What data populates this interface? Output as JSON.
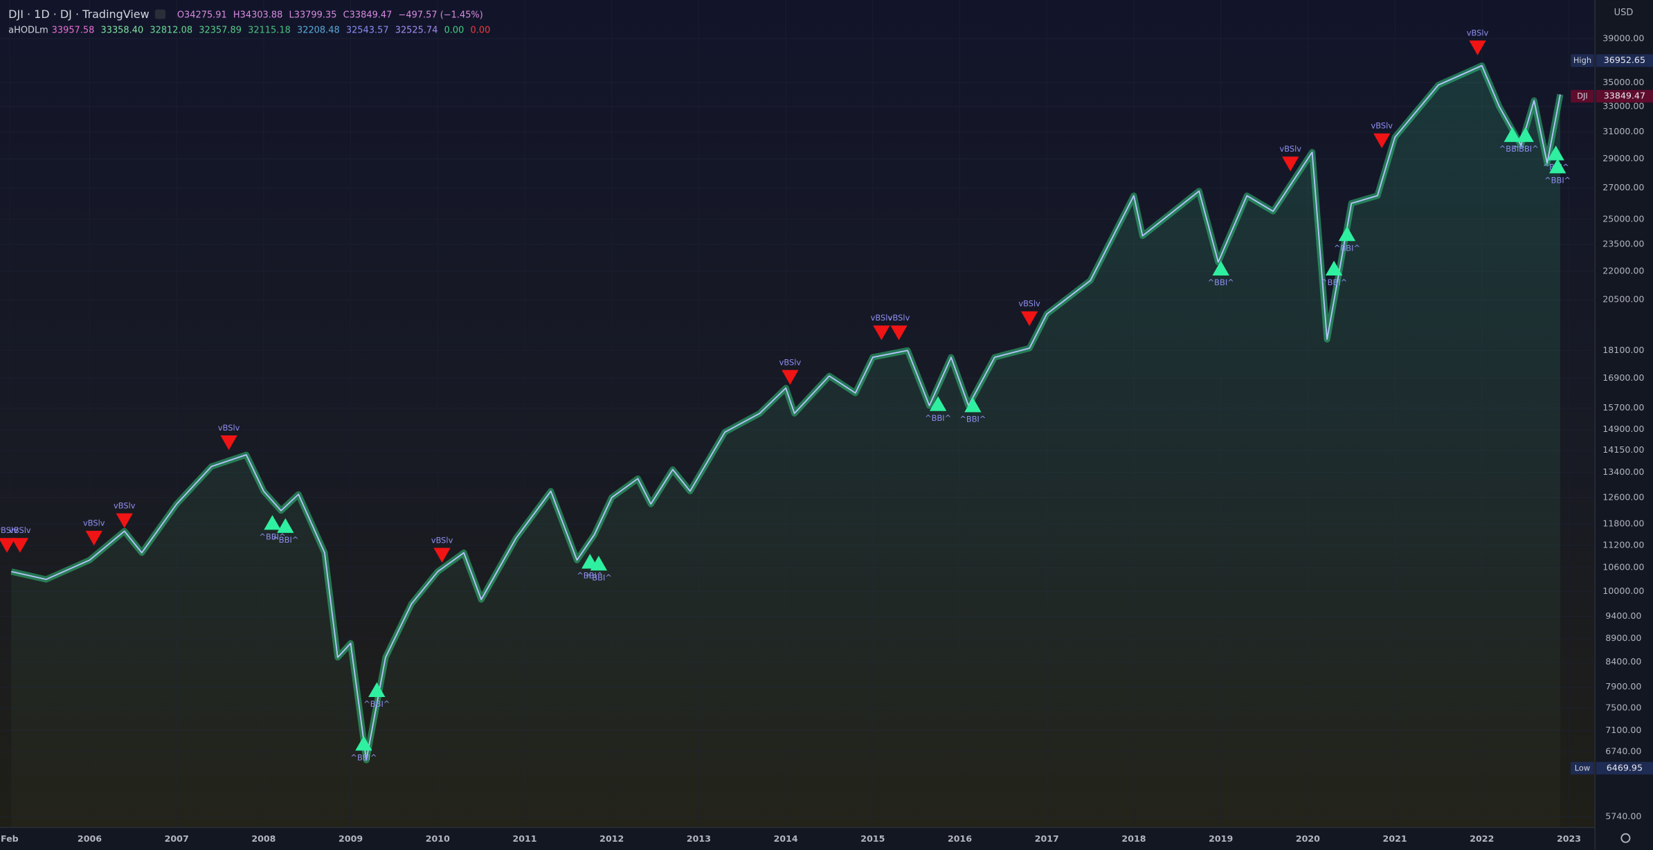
{
  "header": {
    "symbol": "DJI · 1D · DJ · TradingView",
    "ohlc": [
      "O34275.91",
      "H34303.88",
      "L33799.35",
      "C33849.47",
      "−497.57 (−1.45%)"
    ],
    "ohlc_color": "#d88ae0",
    "indicator": "aHODLm",
    "indicator_values": [
      "33957.58",
      "33358.40",
      "32812.08",
      "32357.89",
      "32115.18",
      "32208.48",
      "32543.57",
      "32525.74",
      "0.00",
      "0.00"
    ],
    "indicator_colors": [
      "#e86fd2",
      "#7fe3a0",
      "#6ad894",
      "#56cc88",
      "#48c07e",
      "#5aa8d8",
      "#8a8cf0",
      "#a08cf0",
      "#3fd27f",
      "#ef3b3b"
    ]
  },
  "chart_data": {
    "type": "line",
    "y_unit": "USD",
    "log_scale": true,
    "grid": true,
    "xlim": [
      2004.97,
      2023.3
    ],
    "ylim": [
      5590,
      42900
    ],
    "xticks": [
      {
        "value": 2005.08,
        "label": "Feb"
      },
      2006,
      2007,
      2008,
      2009,
      2010,
      2011,
      2012,
      2013,
      2014,
      2015,
      2016,
      2017,
      2018,
      2019,
      2020,
      2021,
      2022,
      2023
    ],
    "yticks": [
      {
        "value": 39000,
        "label": "39000.00"
      },
      {
        "value": 35000,
        "label": "35000.00"
      },
      {
        "value": 33000,
        "label": "33000.00"
      },
      {
        "value": 31000,
        "label": "31000.00"
      },
      {
        "value": 29000,
        "label": "29000.00"
      },
      {
        "value": 27000,
        "label": "27000.00"
      },
      {
        "value": 25000,
        "label": "25000.00"
      },
      {
        "value": 23500,
        "label": "23500.00"
      },
      {
        "value": 22000,
        "label": "22000.00"
      },
      {
        "value": 20500,
        "label": "20500.00"
      },
      {
        "value": 18100,
        "label": "18100.00"
      },
      {
        "value": 16900,
        "label": "16900.00"
      },
      {
        "value": 15700,
        "label": "15700.00"
      },
      {
        "value": 14900,
        "label": "14900.00"
      },
      {
        "value": 14150,
        "label": "14150.00"
      },
      {
        "value": 13400,
        "label": "13400.00"
      },
      {
        "value": 12600,
        "label": "12600.00"
      },
      {
        "value": 11800,
        "label": "11800.00"
      },
      {
        "value": 11200,
        "label": "11200.00"
      },
      {
        "value": 10600,
        "label": "10600.00"
      },
      {
        "value": 10000,
        "label": "10000.00"
      },
      {
        "value": 9400,
        "label": "9400.00"
      },
      {
        "value": 8900,
        "label": "8900.00"
      },
      {
        "value": 8400,
        "label": "8400.00"
      },
      {
        "value": 7900,
        "label": "7900.00"
      },
      {
        "value": 7500,
        "label": "7500.00"
      },
      {
        "value": 7100,
        "label": "7100.00"
      },
      {
        "value": 6740,
        "label": "6740.00"
      },
      {
        "value": 5740,
        "label": "5740.00"
      }
    ],
    "series": [
      {
        "color": "#b9c3ff",
        "x": [
          2005.1,
          2005.5,
          2006.0,
          2006.4,
          2006.6,
          2007.0,
          2007.4,
          2007.8,
          2008.0,
          2008.2,
          2008.4,
          2008.7,
          2008.85,
          2009.0,
          2009.18,
          2009.4,
          2009.7,
          2010.0,
          2010.3,
          2010.5,
          2010.9,
          2011.3,
          2011.6,
          2011.8,
          2012.0,
          2012.3,
          2012.45,
          2012.7,
          2012.9,
          2013.3,
          2013.7,
          2014.0,
          2014.1,
          2014.5,
          2014.8,
          2015.0,
          2015.4,
          2015.65,
          2015.9,
          2016.1,
          2016.4,
          2016.8,
          2017.0,
          2017.5,
          2018.0,
          2018.1,
          2018.75,
          2018.97,
          2019.3,
          2019.6,
          2020.05,
          2020.22,
          2020.5,
          2020.8,
          2021.0,
          2021.5,
          2022.0,
          2022.2,
          2022.45,
          2022.6,
          2022.75,
          2022.9
        ],
        "values": [
          10500,
          10300,
          10800,
          11600,
          11000,
          12400,
          13600,
          14000,
          12800,
          12200,
          12700,
          11000,
          8500,
          8800,
          6600,
          8500,
          9700,
          10500,
          11000,
          9800,
          11400,
          12800,
          10800,
          11500,
          12600,
          13200,
          12400,
          13500,
          12800,
          14800,
          15500,
          16500,
          15500,
          17000,
          16300,
          17800,
          18100,
          15800,
          17800,
          15800,
          17800,
          18200,
          19800,
          21500,
          26500,
          24000,
          26800,
          22500,
          26500,
          25500,
          29500,
          18600,
          26000,
          26500,
          30600,
          34800,
          36500,
          33000,
          30000,
          33500,
          28700,
          34000
        ]
      },
      {
        "name": "vBSlv",
        "color": "#f01414",
        "marker": "down",
        "x": [
          2005.05,
          2005.2,
          2006.05,
          2006.4,
          2007.6,
          2010.05,
          2014.05,
          2015.1,
          2015.3,
          2016.8,
          2019.8,
          2020.85,
          2021.95
        ],
        "values": [
          11200,
          11200,
          11400,
          11900,
          14420,
          10930,
          16940,
          18900,
          18900,
          19570,
          28650,
          30330,
          38130
        ]
      },
      {
        "name": "^BBI^",
        "color": "#2ff0a0",
        "marker": "up",
        "x": [
          2008.1,
          2008.25,
          2009.15,
          2009.3,
          2011.75,
          2011.85,
          2015.75,
          2016.15,
          2019.0,
          2020.3,
          2020.45,
          2022.35,
          2022.5,
          2022.85,
          2022.87
        ],
        "values": [
          11850,
          11760,
          6880,
          7850,
          10770,
          10720,
          15880,
          15830,
          22170,
          22170,
          24130,
          30800,
          30800,
          29440,
          28510
        ]
      }
    ],
    "price_labels": [
      {
        "label": "High",
        "value": 36952.65,
        "color": "#1e2b52"
      },
      {
        "label": "DJI",
        "value": 33849.47,
        "color": "#5e0c2c"
      },
      {
        "label": "Low",
        "value": 6469.95,
        "color": "#1e2b52"
      }
    ]
  }
}
